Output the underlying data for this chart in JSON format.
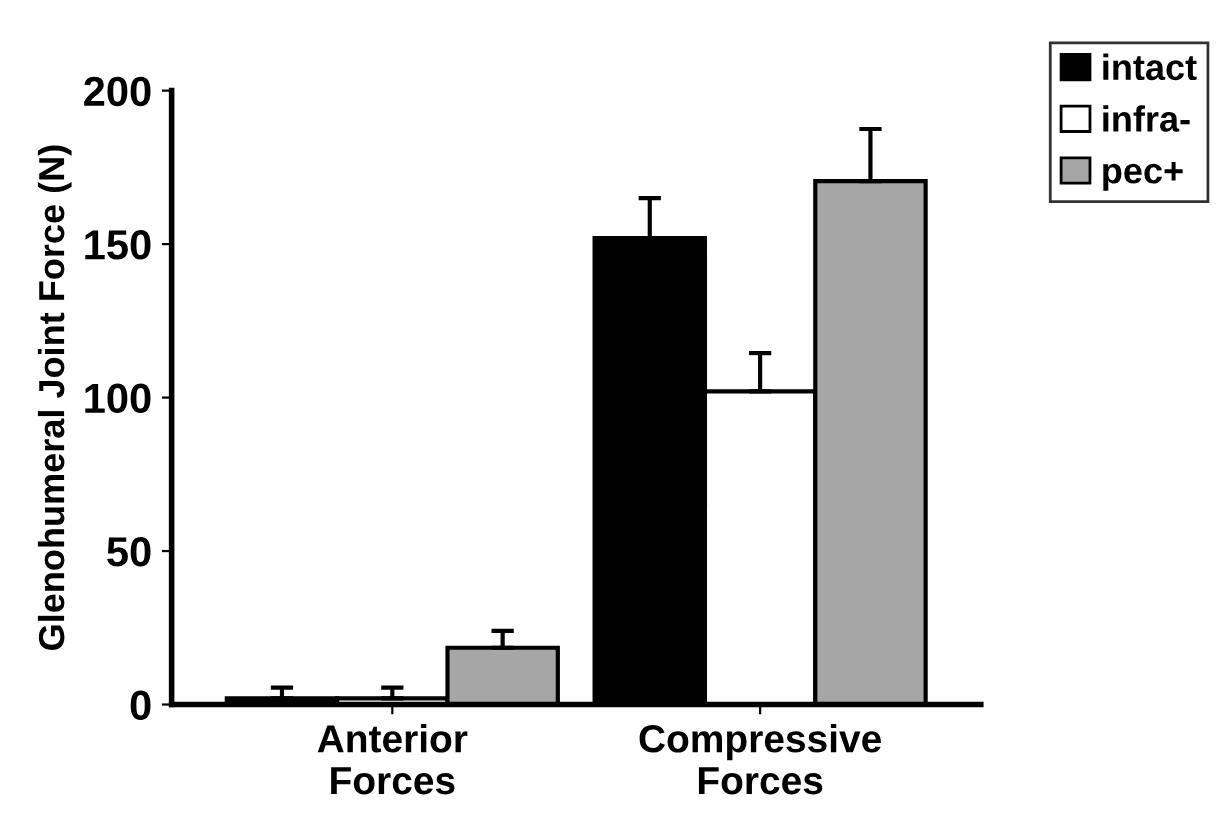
{
  "chart_data": {
    "type": "bar",
    "ylabel": "Glenohumeral Joint Force (N)",
    "categories": [
      "Anterior\nForces",
      "Compressive\nForces"
    ],
    "series": [
      {
        "name": "intact",
        "color": "#000000",
        "values": [
          2,
          152
        ],
        "errors": [
          [
            2,
            5.5
          ],
          [
            152,
            165
          ]
        ]
      },
      {
        "name": "infra-",
        "color": "#ffffff",
        "values": [
          2,
          102
        ],
        "errors": [
          [
            2,
            5.5
          ],
          [
            102,
            114.5
          ]
        ]
      },
      {
        "name": "pec+",
        "color": "#a6a6a6",
        "values": [
          18.5,
          170.5
        ],
        "errors": [
          [
            18.5,
            24
          ],
          [
            170.5,
            187.5
          ]
        ]
      }
    ],
    "ylim": [
      0,
      200
    ],
    "yticks": [
      0,
      50,
      100,
      150,
      200
    ],
    "grid": false,
    "legend": "top right"
  }
}
